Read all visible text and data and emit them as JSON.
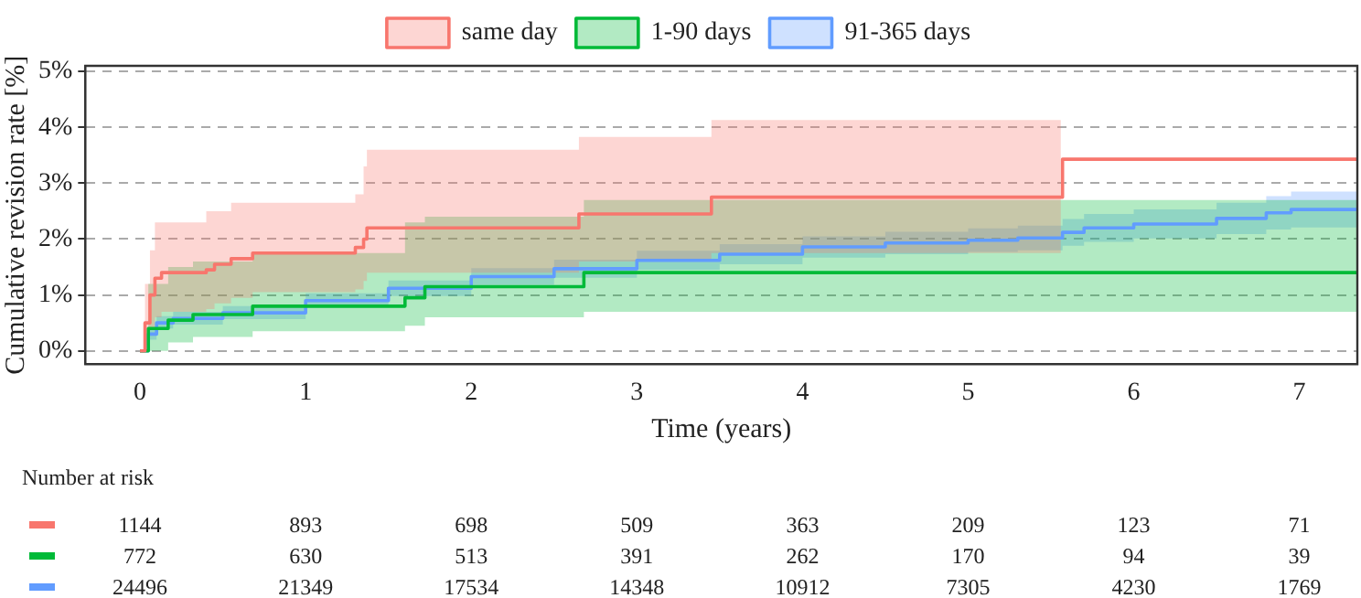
{
  "chart_data": [
    {
      "type": "step",
      "xlabel": "Time (years)",
      "ylabel": "Cumulative revision rate [%]",
      "xlim": [
        -0.33,
        7.35
      ],
      "xticks": [
        0,
        1,
        2,
        3,
        4,
        5,
        6,
        7
      ],
      "ylim": [
        -0.24,
        5.1
      ],
      "yticks": [
        {
          "value": 0,
          "label": "0%"
        },
        {
          "value": 1,
          "label": "1%"
        },
        {
          "value": 2,
          "label": "2%"
        },
        {
          "value": 3,
          "label": "3%"
        },
        {
          "value": 4,
          "label": "4%"
        },
        {
          "value": 5,
          "label": "5%"
        }
      ],
      "grid": "y",
      "legend": "top",
      "series": [
        {
          "name": "same day",
          "color": "#f8766d",
          "x": [
            0,
            0.03,
            0.06,
            0.09,
            0.13,
            0.4,
            0.45,
            0.55,
            0.68,
            1.3,
            1.35,
            1.37,
            2.65,
            3.45,
            5.56,
            5.57,
            7.35
          ],
          "values": [
            0,
            0.5,
            1.0,
            1.3,
            1.4,
            1.45,
            1.55,
            1.65,
            1.75,
            1.85,
            2.0,
            2.2,
            2.45,
            2.75,
            2.75,
            3.43,
            3.43
          ],
          "upper": [
            0,
            1.2,
            1.8,
            2.3,
            2.3,
            2.5,
            2.5,
            2.65,
            2.65,
            2.8,
            3.3,
            3.6,
            3.83,
            4.13,
            4.13,
            null,
            null
          ],
          "lower": [
            0,
            0.1,
            0.4,
            0.6,
            0.7,
            0.75,
            0.85,
            0.95,
            1.05,
            1.1,
            1.25,
            1.4,
            1.6,
            1.75,
            1.75,
            null,
            null
          ]
        },
        {
          "name": "1-90 days",
          "color": "#00ba38",
          "x": [
            0,
            0.05,
            0.17,
            0.32,
            0.68,
            1.6,
            1.72,
            2.68,
            7.35
          ],
          "values": [
            0,
            0.4,
            0.55,
            0.65,
            0.8,
            0.95,
            1.15,
            1.4,
            1.4
          ],
          "upper": [
            0,
            1.2,
            1.5,
            1.6,
            1.75,
            2.3,
            2.4,
            2.7,
            2.7
          ],
          "lower": [
            0,
            0,
            0.15,
            0.25,
            0.35,
            0.45,
            0.6,
            0.7,
            0.7
          ]
        },
        {
          "name": "91-365 days",
          "color": "#619cff",
          "x": [
            0,
            0.05,
            0.1,
            0.2,
            0.5,
            1,
            1.5,
            2,
            2.5,
            3,
            3.5,
            4,
            4.5,
            5,
            5.3,
            5.57,
            5.7,
            6,
            6.5,
            6.8,
            6.95,
            7.35
          ],
          "values": [
            0,
            0.3,
            0.5,
            0.58,
            0.68,
            0.9,
            1.12,
            1.33,
            1.47,
            1.62,
            1.73,
            1.86,
            1.93,
            1.98,
            2.02,
            2.12,
            2.2,
            2.27,
            2.37,
            2.47,
            2.53,
            2.53
          ],
          "upper": [
            0,
            0.4,
            0.62,
            0.7,
            0.8,
            1.03,
            1.26,
            1.48,
            1.63,
            1.79,
            1.91,
            2.05,
            2.13,
            2.19,
            2.24,
            2.36,
            2.45,
            2.53,
            2.65,
            2.77,
            2.85,
            2.9
          ],
          "lower": [
            0,
            0.2,
            0.4,
            0.47,
            0.57,
            0.78,
            0.98,
            1.18,
            1.31,
            1.45,
            1.55,
            1.67,
            1.73,
            1.77,
            1.8,
            1.88,
            1.95,
            2.01,
            2.09,
            2.17,
            2.21,
            2.17
          ]
        }
      ]
    },
    {
      "type": "other",
      "title": "Number at risk",
      "colors": [
        "#f8766d",
        "#00ba38",
        "#619cff"
      ],
      "annotations": [
        "1144",
        "893",
        "698",
        "509",
        "363",
        "209",
        "123",
        "71",
        "772",
        "630",
        "513",
        "391",
        "262",
        "170",
        "94",
        "39",
        "24496",
        "21349",
        "17534",
        "14348",
        "10912",
        "7305",
        "4230",
        "1769"
      ]
    }
  ]
}
